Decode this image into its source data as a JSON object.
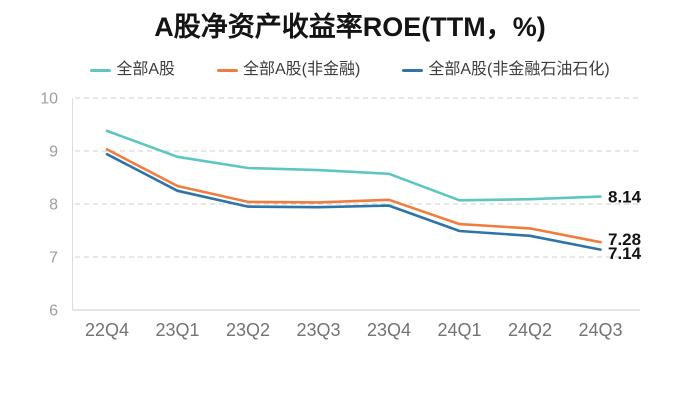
{
  "title": "A股净资产收益率ROE(TTM，%)",
  "colors": {
    "series_teal": "#5EC6C0",
    "series_orange": "#EF7D3E",
    "series_blue": "#2D74A8",
    "gridline": "#CFCFCF",
    "axis_line": "#DCDCDC",
    "ytick_text": "#9E9E9E",
    "xtick_text": "#737373",
    "value_label_text": "#141414",
    "title_text": "#141414",
    "background": "#FFFFFF"
  },
  "chart_data": {
    "type": "line",
    "title": "A股净资产收益率ROE(TTM，%)",
    "categories": [
      "22Q4",
      "23Q1",
      "23Q2",
      "23Q3",
      "23Q4",
      "24Q1",
      "24Q2",
      "24Q3"
    ],
    "series": [
      {
        "name": "全部A股",
        "color": "#5EC6C0",
        "values": [
          9.38,
          8.89,
          8.68,
          8.64,
          8.57,
          8.07,
          8.09,
          8.14
        ],
        "end_label": "8.14"
      },
      {
        "name": "全部A股(非金融)",
        "color": "#EF7D3E",
        "values": [
          9.03,
          8.34,
          8.04,
          8.03,
          8.08,
          7.62,
          7.54,
          7.28
        ],
        "end_label": "7.28"
      },
      {
        "name": "全部A股(非金融石油石化)",
        "color": "#2D74A8",
        "values": [
          8.94,
          8.25,
          7.95,
          7.94,
          7.97,
          7.49,
          7.4,
          7.14
        ],
        "end_label": "7.14"
      }
    ],
    "yticks": [
      10,
      9,
      8,
      7,
      6
    ],
    "ylim": [
      6,
      10
    ],
    "xlabel": "",
    "ylabel": "",
    "grid": "horizontal-dashed",
    "legend_position": "top",
    "markers": "none"
  }
}
